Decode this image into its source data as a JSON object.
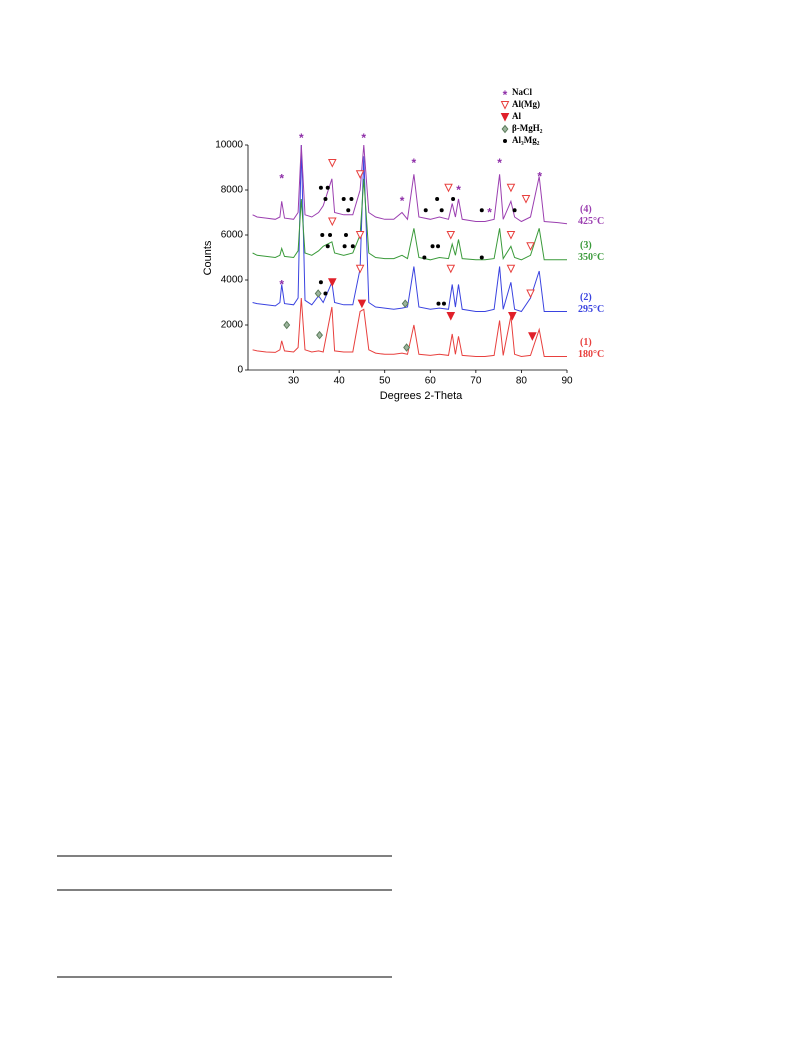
{
  "chart_data": {
    "type": "line",
    "xlabel": "Degrees 2-Theta",
    "ylabel": "Counts",
    "xlim": [
      20,
      90
    ],
    "xticks": [
      30,
      40,
      50,
      60,
      70,
      80,
      90
    ],
    "ylim": [
      0,
      10000
    ],
    "yticks": [
      0,
      2000,
      4000,
      6000,
      8000,
      10000
    ],
    "x": [
      21,
      22,
      24,
      26,
      27,
      27.4,
      28,
      30,
      31,
      31.7,
      32.5,
      34,
      35.5,
      36.5,
      38.4,
      39,
      41,
      43,
      44.6,
      45.4,
      46.5,
      48,
      50,
      52,
      53.8,
      55,
      56.4,
      57.5,
      60,
      62,
      64,
      64.8,
      65.5,
      66.2,
      67,
      70,
      72,
      74,
      75.2,
      76,
      77.7,
      78.5,
      80,
      82,
      83.9,
      85,
      88,
      90
    ],
    "series": [
      {
        "name": "(1)",
        "temperature": "180°C",
        "color": "#e8403e",
        "values": [
          900,
          850,
          800,
          780,
          900,
          1300,
          850,
          800,
          1000,
          3200,
          900,
          800,
          850,
          800,
          2800,
          850,
          800,
          800,
          2600,
          2700,
          900,
          750,
          700,
          700,
          750,
          700,
          2000,
          700,
          650,
          700,
          650,
          1600,
          700,
          1500,
          650,
          600,
          600,
          650,
          2200,
          650,
          2400,
          700,
          600,
          650,
          1800,
          600,
          600,
          600
        ]
      },
      {
        "name": "(2)",
        "temperature": "295°C",
        "color": "#3a43e0",
        "values": [
          3000,
          2950,
          2900,
          2850,
          3000,
          3800,
          2950,
          2900,
          3200,
          10000,
          3100,
          2900,
          3300,
          3000,
          3900,
          3000,
          2900,
          2900,
          4500,
          9500,
          3000,
          2800,
          2750,
          2700,
          2750,
          2800,
          4600,
          2800,
          2700,
          2750,
          2700,
          3800,
          2800,
          3800,
          2700,
          2600,
          2600,
          2700,
          4600,
          2700,
          3900,
          2700,
          2600,
          3200,
          4400,
          2600,
          2600,
          2600
        ]
      },
      {
        "name": "(3)",
        "temperature": "350°C",
        "color": "#3a9a3a",
        "values": [
          5200,
          5100,
          5050,
          5000,
          5100,
          5400,
          5050,
          5000,
          5300,
          7600,
          5200,
          5100,
          5300,
          5500,
          5700,
          5200,
          5100,
          5200,
          6000,
          8500,
          5200,
          5000,
          4950,
          4950,
          5100,
          4950,
          6300,
          5000,
          4900,
          5000,
          4950,
          5600,
          5100,
          5800,
          4950,
          4900,
          4900,
          4950,
          6300,
          4950,
          5500,
          5000,
          4900,
          5100,
          6300,
          4900,
          4900,
          4900
        ]
      },
      {
        "name": "(4)",
        "temperature": "425°C",
        "color": "#9b3fb0",
        "values": [
          6900,
          6800,
          6750,
          6700,
          6800,
          7500,
          6750,
          6700,
          7000,
          10000,
          6900,
          6800,
          7000,
          7300,
          8500,
          7000,
          6900,
          6900,
          8000,
          10000,
          7000,
          6800,
          6700,
          6700,
          7000,
          6700,
          8700,
          6800,
          6700,
          6800,
          6700,
          7400,
          6800,
          7600,
          6700,
          6600,
          6600,
          6700,
          8700,
          6700,
          7500,
          6800,
          6600,
          6800,
          8600,
          6600,
          6550,
          6500
        ]
      }
    ],
    "legend_items": [
      {
        "name": "NaCl",
        "symbol": "star",
        "color": "#8e2fa8",
        "points": [
          [
            27.4,
            8600
          ],
          [
            31.7,
            10400
          ],
          [
            45.4,
            10400
          ],
          [
            53.8,
            7600
          ],
          [
            56.4,
            9300
          ],
          [
            66.2,
            8100
          ],
          [
            73,
            7100
          ],
          [
            75.2,
            9300
          ],
          [
            84,
            8700
          ],
          [
            27.4,
            3900
          ]
        ]
      },
      {
        "name": "Al(Mg)",
        "symbol": "open-triangle",
        "color": "#e8403e",
        "points": [
          [
            38.5,
            9200
          ],
          [
            44.6,
            8700
          ],
          [
            64,
            8100
          ],
          [
            77.7,
            8100
          ],
          [
            81,
            7600
          ],
          [
            38.5,
            6600
          ],
          [
            44.6,
            6000
          ],
          [
            64.5,
            6000
          ],
          [
            77.7,
            6000
          ],
          [
            82,
            5500
          ],
          [
            44.6,
            4500
          ],
          [
            64.5,
            4500
          ],
          [
            77.7,
            4500
          ],
          [
            82,
            3400
          ]
        ]
      },
      {
        "name": "Al",
        "symbol": "solid-triangle",
        "color": "#e0202a",
        "points": [
          [
            38.5,
            3900
          ],
          [
            45,
            2950
          ],
          [
            64.5,
            2400
          ],
          [
            78,
            2400
          ],
          [
            82.4,
            1500
          ]
        ]
      },
      {
        "name": "β-MgH₂",
        "symbol": "diamond",
        "color": "#5a7a5a",
        "points": [
          [
            35.4,
            3400
          ],
          [
            54.5,
            2950
          ],
          [
            28.5,
            2000
          ],
          [
            35.7,
            1550
          ],
          [
            54.8,
            1000
          ]
        ]
      },
      {
        "name": "Al₃Mg₂",
        "symbol": "dot",
        "color": "#000000",
        "points": [
          [
            36,
            8100
          ],
          [
            37.5,
            8100
          ],
          [
            37,
            7600
          ],
          [
            41,
            7600
          ],
          [
            42,
            7100
          ],
          [
            42.7,
            7600
          ],
          [
            59,
            7100
          ],
          [
            61.5,
            7600
          ],
          [
            62.5,
            7100
          ],
          [
            65,
            7600
          ],
          [
            71.3,
            7100
          ],
          [
            78.5,
            7100
          ],
          [
            36.3,
            6000
          ],
          [
            38,
            6000
          ],
          [
            37.5,
            5500
          ],
          [
            41.5,
            6000
          ],
          [
            41.2,
            5500
          ],
          [
            43,
            5500
          ],
          [
            58.7,
            5000
          ],
          [
            60.5,
            5500
          ],
          [
            61.7,
            5500
          ],
          [
            71.3,
            5000
          ],
          [
            36,
            3900
          ],
          [
            37,
            3400
          ],
          [
            61.8,
            2950
          ],
          [
            63,
            2950
          ]
        ]
      }
    ]
  }
}
